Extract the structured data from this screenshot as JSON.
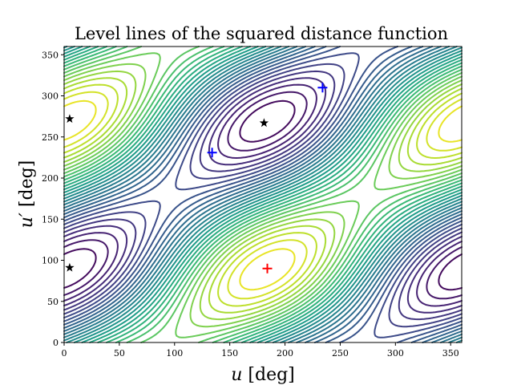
{
  "chart_data": {
    "type": "contour",
    "title": "Level lines of the squared distance function",
    "xlabel": "u [deg]",
    "ylabel": "u′ [deg]",
    "xlabel_var": "u",
    "xlabel_unit": "[deg]",
    "ylabel_var": "u′",
    "ylabel_unit": "[deg]",
    "xlim": [
      0,
      360
    ],
    "ylim": [
      0,
      360
    ],
    "xticks": [
      "0",
      "50",
      "100",
      "150",
      "200",
      "250",
      "300",
      "350"
    ],
    "yticks": [
      "0",
      "50",
      "100",
      "150",
      "200",
      "250",
      "300",
      "350"
    ],
    "colormap": "viridis",
    "grid": false,
    "markers": [
      {
        "type": "star",
        "color": "#000000",
        "u": 5,
        "v": 272
      },
      {
        "type": "star",
        "color": "#000000",
        "u": 5,
        "v": 91
      },
      {
        "type": "star",
        "color": "#000000",
        "u": 181,
        "v": 267
      },
      {
        "type": "plus",
        "color": "#0000ff",
        "u": 134,
        "v": 231
      },
      {
        "type": "plus",
        "color": "#0000ff",
        "u": 234,
        "v": 310
      },
      {
        "type": "plus",
        "color": "#ff0000",
        "u": 184,
        "v": 90
      }
    ]
  }
}
